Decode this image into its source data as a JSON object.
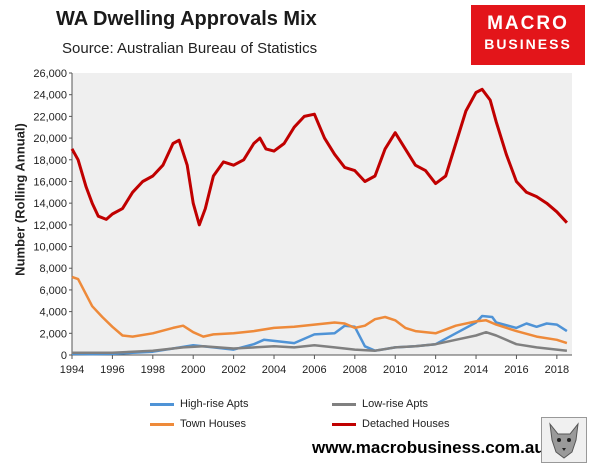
{
  "header": {
    "title": "WA Dwelling Approvals Mix",
    "subtitle": "Source: Australian Bureau of Statistics",
    "logo_line1": "MACRO",
    "logo_line2": "BUSINESS"
  },
  "footer": {
    "url": "www.macrobusiness.com.au"
  },
  "colors": {
    "high_rise": "#4f93d6",
    "low_rise": "#808080",
    "town_houses": "#ee8a3a",
    "detached": "#c00000",
    "plot_bg": "#efefef",
    "logo_bg": "#e3151a"
  },
  "icons": {
    "badge": "wolf-badge-icon"
  },
  "chart_data": {
    "type": "line",
    "title": "WA Dwelling Approvals Mix",
    "xlabel": "",
    "ylabel": "Number (Rolling Annual)",
    "xlim": [
      1994,
      2018.75
    ],
    "ylim": [
      0,
      26000
    ],
    "grid": false,
    "legend_position": "bottom",
    "x_ticks": [
      "1994",
      "1996",
      "1998",
      "2000",
      "2002",
      "2004",
      "2006",
      "2008",
      "2010",
      "2012",
      "2014",
      "2016",
      "2018"
    ],
    "y_ticks": [
      "0",
      "2,000",
      "4,000",
      "6,000",
      "8,000",
      "10,000",
      "12,000",
      "14,000",
      "16,000",
      "18,000",
      "20,000",
      "22,000",
      "24,000",
      "26,000"
    ],
    "series": [
      {
        "name": "High-rise Apts",
        "x": [
          1994,
          1995,
          1996,
          1997,
          1998,
          1999,
          2000,
          2001,
          2002,
          2003,
          2003.5,
          2004,
          2005,
          2006,
          2007,
          2007.5,
          2008,
          2008.5,
          2009,
          2010,
          2011,
          2012,
          2013,
          2014,
          2014.3,
          2014.8,
          2015,
          2016,
          2016.5,
          2017,
          2017.5,
          2018,
          2018.5
        ],
        "y": [
          100,
          80,
          100,
          200,
          300,
          600,
          900,
          700,
          500,
          1000,
          1400,
          1300,
          1100,
          1900,
          2000,
          2700,
          2600,
          800,
          400,
          700,
          800,
          1000,
          2000,
          3000,
          3600,
          3500,
          3000,
          2500,
          2900,
          2600,
          2900,
          2800,
          2200
        ]
      },
      {
        "name": "Low-rise Apts",
        "x": [
          1994,
          1996,
          1998,
          1999.5,
          2000.5,
          2002,
          2004,
          2005,
          2006,
          2007,
          2008,
          2009,
          2010,
          2011,
          2012,
          2013,
          2014,
          2014.5,
          2015,
          2016,
          2017,
          2018,
          2018.5
        ],
        "y": [
          200,
          200,
          400,
          700,
          800,
          600,
          800,
          700,
          900,
          700,
          500,
          400,
          700,
          800,
          1000,
          1400,
          1800,
          2100,
          1800,
          1000,
          700,
          500,
          400
        ]
      },
      {
        "name": "Town Houses",
        "x": [
          1994,
          1994.3,
          1995,
          1995.5,
          1996,
          1996.5,
          1997,
          1998,
          1999,
          1999.5,
          2000,
          2000.5,
          2001,
          2002,
          2003,
          2004,
          2005,
          2006,
          2007,
          2007.5,
          2008,
          2008.5,
          2009,
          2009.5,
          2010,
          2010.5,
          2011,
          2012,
          2013,
          2014,
          2014.5,
          2015,
          2016,
          2017,
          2018,
          2018.5
        ],
        "y": [
          7200,
          7000,
          4500,
          3500,
          2600,
          1800,
          1700,
          2000,
          2500,
          2700,
          2100,
          1700,
          1900,
          2000,
          2200,
          2500,
          2600,
          2800,
          3000,
          2900,
          2500,
          2700,
          3300,
          3500,
          3200,
          2500,
          2200,
          2000,
          2700,
          3100,
          3200,
          2800,
          2200,
          1700,
          1400,
          1100
        ]
      },
      {
        "name": "Detached Houses",
        "x": [
          1994,
          1994.3,
          1994.7,
          1995,
          1995.3,
          1995.7,
          1996,
          1996.5,
          1997,
          1997.5,
          1998,
          1998.5,
          1999,
          1999.3,
          1999.7,
          2000,
          2000.3,
          2000.6,
          2001,
          2001.5,
          2002,
          2002.5,
          2003,
          2003.3,
          2003.6,
          2004,
          2004.5,
          2005,
          2005.5,
          2006,
          2006.5,
          2007,
          2007.5,
          2008,
          2008.5,
          2009,
          2009.5,
          2010,
          2010.5,
          2011,
          2011.5,
          2012,
          2012.5,
          2013,
          2013.5,
          2014,
          2014.3,
          2014.7,
          2015,
          2015.5,
          2016,
          2016.5,
          2017,
          2017.5,
          2018,
          2018.5
        ],
        "y": [
          19000,
          18000,
          15500,
          14000,
          12800,
          12500,
          13000,
          13500,
          15000,
          16000,
          16500,
          17500,
          19500,
          19800,
          17500,
          14000,
          12000,
          13500,
          16500,
          17800,
          17500,
          18000,
          19500,
          20000,
          19000,
          18800,
          19500,
          21000,
          22000,
          22200,
          20000,
          18500,
          17300,
          17000,
          16000,
          16500,
          19000,
          20500,
          19000,
          17500,
          17000,
          15800,
          16500,
          19500,
          22500,
          24200,
          24500,
          23500,
          21500,
          18500,
          16000,
          15000,
          14600,
          14000,
          13200,
          12200
        ]
      }
    ]
  }
}
